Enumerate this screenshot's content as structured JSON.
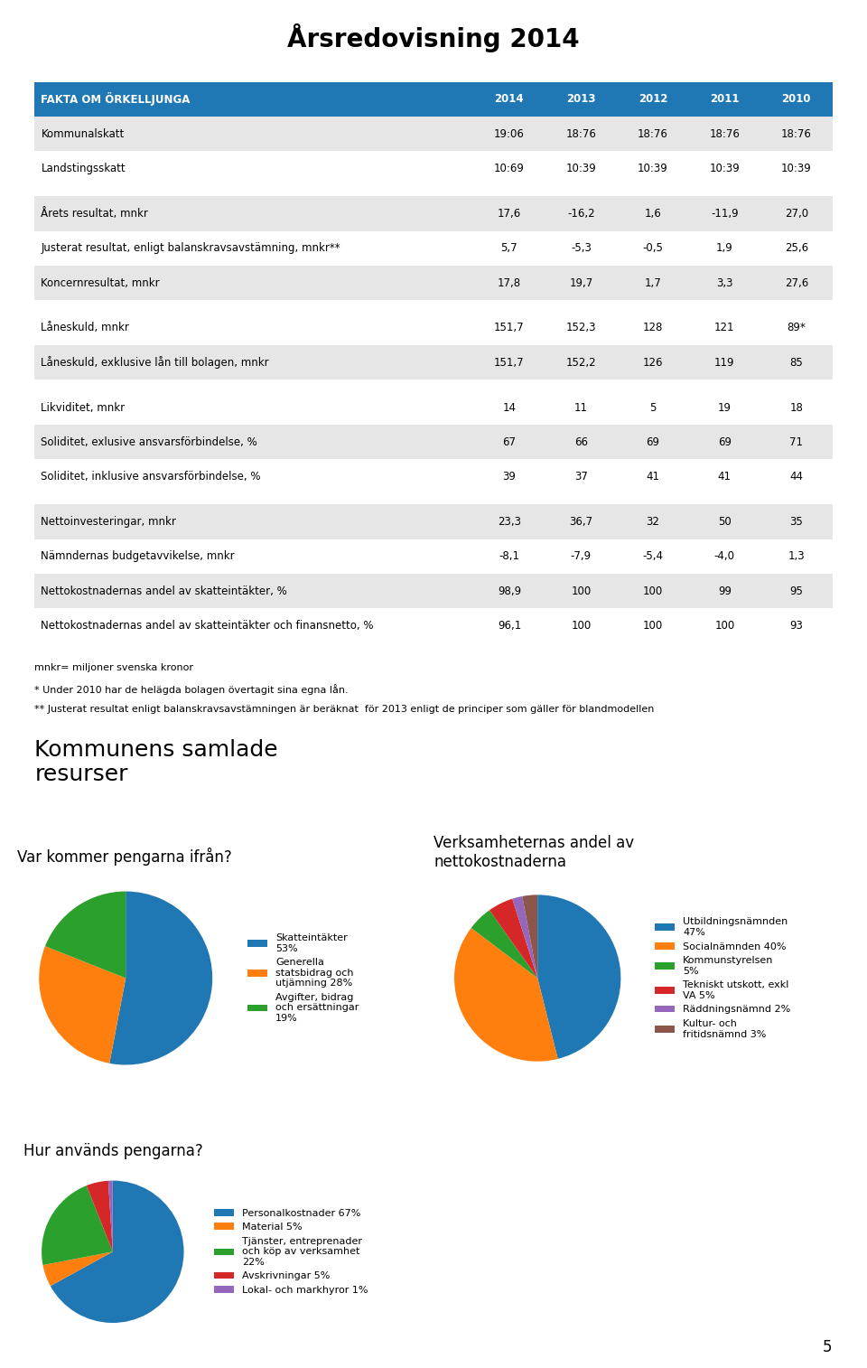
{
  "title": "Årsredovisning 2014",
  "subtitle": "Kommunens samlade\nresurser",
  "annotations": [
    "5"
  ],
  "chart_data": [
    {
      "type": "table",
      "header": [
        "FAKTA OM ÖRKELLJUNGA",
        "2014",
        "2013",
        "2012",
        "2011",
        "2010"
      ],
      "row_groups": [
        [
          [
            "Kommunalskatt",
            "19:06",
            "18:76",
            "18:76",
            "18:76",
            "18:76"
          ],
          [
            "Landstingsskatt",
            "10:69",
            "10:39",
            "10:39",
            "10:39",
            "10:39"
          ]
        ],
        [
          [
            "Årets resultat, mnkr",
            "17,6",
            "-16,2",
            "1,6",
            "-11,9",
            "27,0"
          ],
          [
            "Justerat resultat, enligt balanskravsavstämning, mnkr**",
            "5,7",
            "-5,3",
            "-0,5",
            "1,9",
            "25,6"
          ],
          [
            "Koncernresultat, mnkr",
            "17,8",
            "19,7",
            "1,7",
            "3,3",
            "27,6"
          ]
        ],
        [
          [
            "Låneskuld, mnkr",
            "151,7",
            "152,3",
            "128",
            "121",
            "89*"
          ],
          [
            "Låneskuld, exklusive lån till bolagen, mnkr",
            "151,7",
            "152,2",
            "126",
            "119",
            "85"
          ]
        ],
        [
          [
            "Likviditet, mnkr",
            "14",
            "11",
            "5",
            "19",
            "18"
          ],
          [
            "Soliditet, exlusive ansvarsförbindelse, %",
            "67",
            "66",
            "69",
            "69",
            "71"
          ],
          [
            "Soliditet, inklusive ansvarsförbindelse, %",
            "39",
            "37",
            "41",
            "41",
            "44"
          ]
        ],
        [
          [
            "Nettoinvesteringar, mnkr",
            "23,3",
            "36,7",
            "32",
            "50",
            "35"
          ],
          [
            "Nämndernas budgetavvikelse, mnkr",
            "-8,1",
            "-7,9",
            "-5,4",
            "-4,0",
            "1,3"
          ],
          [
            "Nettokostnadernas andel av skatteintäkter, %",
            "98,9",
            "100",
            "100",
            "99",
            "95"
          ],
          [
            "Nettokostnadernas andel av skatteintäkter och finansnetto, %",
            "96,1",
            "100",
            "100",
            "100",
            "93"
          ]
        ]
      ],
      "annotations": [
        "mnkr= miljoner svenska kronor",
        "* Under 2010 har de helägda bolagen övertagit sina egna lån.",
        "** Justerat resultat enligt balanskravsavstämningen är beräknat  för 2013 enligt de principer som gäller för blandmodellen"
      ]
    },
    {
      "type": "pie",
      "title": "Var kommer pengarna ifrån?",
      "categories": [
        "Skatteintäkter\n53%",
        "Generella\nstatsbidrag och\nutjämning 28%",
        "Avgifter, bidrag\noch ersättningar\n19%"
      ],
      "values": [
        53,
        28,
        19
      ],
      "legend": "center left"
    },
    {
      "type": "pie",
      "title": "Verksamheternas andel av\nnettokostnaderna",
      "categories": [
        "Utbildningsnämnden\n47%",
        "Socialnämnden 40%",
        "Kommunstyrelsen\n5%",
        "Tekniskt utskott, exkl\nVA 5%",
        "Räddningsnämnd 2%",
        "Kultur- och\nfritidsnämnd 3%"
      ],
      "values": [
        47,
        40,
        5,
        5,
        2,
        3
      ],
      "legend": "center left"
    },
    {
      "type": "pie",
      "title": "Hur används pengarna?",
      "categories": [
        "Personalkostnader 67%",
        "Material 5%",
        "Tjänster, entreprenader\noch köp av verksamhet\n22%",
        "Avskrivningar 5%",
        "Lokal- och markhyror 1%"
      ],
      "values": [
        67,
        5,
        22,
        5,
        1
      ],
      "legend": "center left"
    }
  ]
}
